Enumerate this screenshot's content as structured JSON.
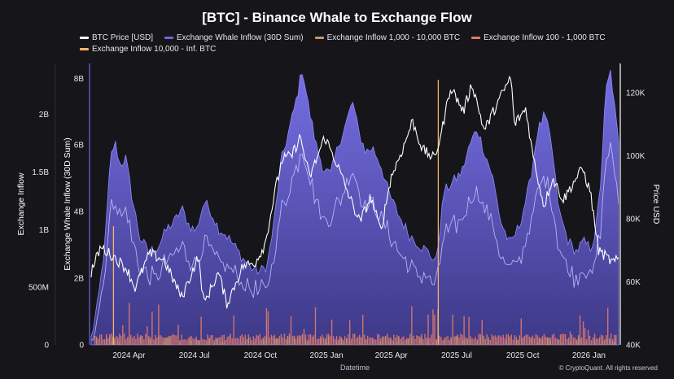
{
  "chart_data": {
    "type": "area",
    "title": "[BTC] - Binance Whale to Exchange Flow",
    "xlabel": "Datetime",
    "ylabel_left_outer": "Exchange Inflow",
    "ylabel_left_inner": "Exchange Whale Inflow (30D Sum)",
    "ylabel_right": "Price USD",
    "x_ticks": [
      "2024 Apr",
      "2024 Jul",
      "2024 Oct",
      "2025 Jan",
      "2025 Apr",
      "2025 Jul",
      "2025 Oct",
      "2026 Jan"
    ],
    "y_outer_ticks": [
      "0",
      "500M",
      "1B",
      "1.5B",
      "2B"
    ],
    "y_outer_ticks_values": [
      0,
      500000000,
      1000000000,
      1500000000,
      2000000000
    ],
    "y_inner_ticks": [
      "0",
      "2B",
      "4B",
      "6B",
      "8B"
    ],
    "y_inner_ticks_values": [
      0,
      2000000000,
      4000000000,
      6000000000,
      8000000000
    ],
    "y_right_ticks": [
      "40K",
      "60K",
      "80K",
      "100K",
      "120K"
    ],
    "y_right_ticks_values": [
      40000,
      60000,
      80000,
      100000,
      120000
    ],
    "y_outer_lim": [
      0,
      2400000000
    ],
    "y_inner_lim": [
      0,
      8300000000
    ],
    "y_right_lim": [
      40000,
      120000
    ],
    "x_range": [
      "2024-03-01",
      "2026-03-05"
    ],
    "legend_position": "top",
    "series": [
      {
        "name": "BTC Price [USD]",
        "color": "#ffffff",
        "axis": "right",
        "points": [
          [
            "2024-03-01",
            63000
          ],
          [
            "2024-03-14",
            71000
          ],
          [
            "2024-04-01",
            68000
          ],
          [
            "2024-04-20",
            64000
          ],
          [
            "2024-05-01",
            58000
          ],
          [
            "2024-05-21",
            69000
          ],
          [
            "2024-06-10",
            67000
          ],
          [
            "2024-07-05",
            55000
          ],
          [
            "2024-07-28",
            68000
          ],
          [
            "2024-08-05",
            53000
          ],
          [
            "2024-08-25",
            63000
          ],
          [
            "2024-09-06",
            53000
          ],
          [
            "2024-09-28",
            65000
          ],
          [
            "2024-10-15",
            66000
          ],
          [
            "2024-10-29",
            72000
          ],
          [
            "2024-11-13",
            90000
          ],
          [
            "2024-11-22",
            99000
          ],
          [
            "2024-12-05",
            100000
          ],
          [
            "2024-12-17",
            106000
          ],
          [
            "2024-12-30",
            93000
          ],
          [
            "2025-01-20",
            106000
          ],
          [
            "2025-02-05",
            98000
          ],
          [
            "2025-02-25",
            86000
          ],
          [
            "2025-03-10",
            79000
          ],
          [
            "2025-03-25",
            87000
          ],
          [
            "2025-04-08",
            76000
          ],
          [
            "2025-04-22",
            93000
          ],
          [
            "2025-05-10",
            103000
          ],
          [
            "2025-05-22",
            111000
          ],
          [
            "2025-06-05",
            102000
          ],
          [
            "2025-06-22",
            99000
          ],
          [
            "2025-07-03",
            109000
          ],
          [
            "2025-07-14",
            122000
          ],
          [
            "2025-08-01",
            114000
          ],
          [
            "2025-08-13",
            123000
          ],
          [
            "2025-08-30",
            108000
          ],
          [
            "2025-09-18",
            117000
          ],
          [
            "2025-10-06",
            125000
          ],
          [
            "2025-10-11",
            110000
          ],
          [
            "2025-10-27",
            115000
          ],
          [
            "2025-11-05",
            101000
          ],
          [
            "2025-11-21",
            84000
          ],
          [
            "2025-12-03",
            93000
          ],
          [
            "2025-12-18",
            86000
          ],
          [
            "2026-01-05",
            93000
          ],
          [
            "2026-01-14",
            96000
          ],
          [
            "2026-01-25",
            88000
          ],
          [
            "2026-02-05",
            70000
          ],
          [
            "2026-02-15",
            68000
          ],
          [
            "2026-02-25",
            66000
          ],
          [
            "2026-03-05",
            67000
          ]
        ]
      },
      {
        "name": "Exchange Whale Inflow (30D Sum)",
        "color": "#6e66e0",
        "axis": "inner",
        "points": [
          [
            "2024-03-01",
            0.2
          ],
          [
            "2024-03-10",
            1.2
          ],
          [
            "2024-03-20",
            3.0
          ],
          [
            "2024-03-28",
            5.6
          ],
          [
            "2024-04-03",
            6.1
          ],
          [
            "2024-04-10",
            5.4
          ],
          [
            "2024-04-18",
            5.6
          ],
          [
            "2024-04-28",
            4.3
          ],
          [
            "2024-05-08",
            3.2
          ],
          [
            "2024-05-20",
            2.8
          ],
          [
            "2024-06-01",
            2.9
          ],
          [
            "2024-06-15",
            3.5
          ],
          [
            "2024-06-25",
            3.7
          ],
          [
            "2024-07-05",
            4.1
          ],
          [
            "2024-07-15",
            3.6
          ],
          [
            "2024-07-25",
            3.4
          ],
          [
            "2024-08-05",
            4.3
          ],
          [
            "2024-08-15",
            4.0
          ],
          [
            "2024-08-25",
            3.5
          ],
          [
            "2024-09-05",
            3.3
          ],
          [
            "2024-09-15",
            3.0
          ],
          [
            "2024-09-28",
            2.6
          ],
          [
            "2024-10-10",
            2.3
          ],
          [
            "2024-10-22",
            2.2
          ],
          [
            "2024-11-01",
            2.4
          ],
          [
            "2024-11-10",
            3.6
          ],
          [
            "2024-11-20",
            5.5
          ],
          [
            "2024-12-01",
            6.4
          ],
          [
            "2024-12-10",
            7.2
          ],
          [
            "2024-12-20",
            8.3
          ],
          [
            "2024-12-28",
            7.2
          ],
          [
            "2025-01-08",
            6.0
          ],
          [
            "2025-01-18",
            5.3
          ],
          [
            "2025-01-28",
            5.1
          ],
          [
            "2025-02-08",
            6.0
          ],
          [
            "2025-02-18",
            6.6
          ],
          [
            "2025-02-28",
            7.3
          ],
          [
            "2025-03-08",
            6.4
          ],
          [
            "2025-03-18",
            5.8
          ],
          [
            "2025-03-28",
            5.9
          ],
          [
            "2025-04-08",
            5.4
          ],
          [
            "2025-04-20",
            4.5
          ],
          [
            "2025-05-05",
            3.8
          ],
          [
            "2025-05-18",
            3.3
          ],
          [
            "2025-06-01",
            3.0
          ],
          [
            "2025-06-12",
            2.8
          ],
          [
            "2025-06-24",
            2.5
          ],
          [
            "2025-07-05",
            4.6
          ],
          [
            "2025-07-18",
            4.9
          ],
          [
            "2025-07-30",
            5.2
          ],
          [
            "2025-08-10",
            6.0
          ],
          [
            "2025-08-20",
            6.5
          ],
          [
            "2025-08-30",
            5.8
          ],
          [
            "2025-09-10",
            5.1
          ],
          [
            "2025-09-22",
            3.7
          ],
          [
            "2025-10-05",
            3.0
          ],
          [
            "2025-10-18",
            3.6
          ],
          [
            "2025-11-01",
            4.8
          ],
          [
            "2025-11-12",
            6.4
          ],
          [
            "2025-11-22",
            6.9
          ],
          [
            "2025-12-01",
            6.1
          ],
          [
            "2025-12-12",
            4.0
          ],
          [
            "2025-12-25",
            3.1
          ],
          [
            "2026-01-05",
            2.8
          ],
          [
            "2026-01-15",
            3.1
          ],
          [
            "2026-01-25",
            2.9
          ],
          [
            "2026-02-01",
            3.4
          ],
          [
            "2026-02-08",
            4.9
          ],
          [
            "2026-02-15",
            7.6
          ],
          [
            "2026-02-22",
            8.2
          ],
          [
            "2026-03-05",
            6.0
          ]
        ]
      },
      {
        "name": "Exchange Inflow 1,000 - 10,000 BTC",
        "color": "#c9956c",
        "axis": "outer"
      },
      {
        "name": "Exchange Inflow 100 - 1,000 BTC",
        "color": "#e07a6a",
        "axis": "outer"
      },
      {
        "name": "Exchange Inflow 10,000 - Inf. BTC",
        "color": "#f2b56b",
        "axis": "outer",
        "points": [
          [
            "2024-04-01",
            1030000000
          ],
          [
            "2025-06-27",
            2300000000
          ]
        ]
      }
    ]
  },
  "footer": {
    "credit": "© CryptoQuant. All rights reserved"
  }
}
